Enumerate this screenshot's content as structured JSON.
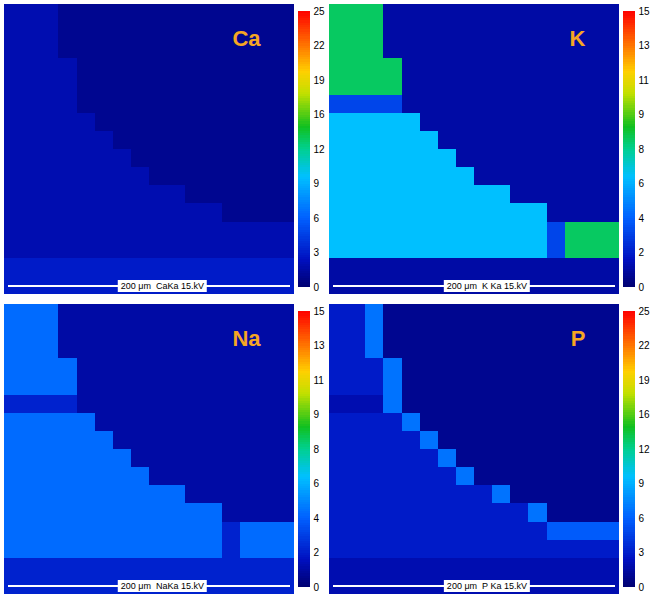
{
  "chart_data": [
    {
      "type": "heatmap",
      "title": "Ca",
      "scale_bar": "200 μm",
      "info": "CaKa 15.kV",
      "tick_labels": false,
      "cells": [
        [
          2,
          2,
          2,
          1,
          1,
          1,
          1,
          1,
          1,
          1,
          1,
          1,
          1,
          1,
          1,
          1
        ],
        [
          2,
          2,
          2,
          1,
          1,
          1,
          1,
          1,
          1,
          1,
          1,
          1,
          1,
          1,
          1,
          1
        ],
        [
          2,
          2,
          2,
          1,
          1,
          1,
          1,
          1,
          1,
          1,
          1,
          1,
          1,
          1,
          1,
          1
        ],
        [
          2,
          2,
          2,
          2,
          1,
          1,
          1,
          1,
          1,
          1,
          1,
          1,
          1,
          1,
          1,
          1
        ],
        [
          2,
          2,
          2,
          2,
          1,
          1,
          1,
          1,
          1,
          1,
          1,
          1,
          1,
          1,
          1,
          1
        ],
        [
          2,
          2,
          2,
          2,
          1,
          1,
          1,
          1,
          1,
          1,
          1,
          1,
          1,
          1,
          1,
          1
        ],
        [
          2,
          2,
          2,
          2,
          2,
          1,
          1,
          1,
          1,
          1,
          1,
          1,
          1,
          1,
          1,
          1
        ],
        [
          2,
          2,
          2,
          2,
          2,
          2,
          1,
          1,
          1,
          1,
          1,
          1,
          1,
          1,
          1,
          1
        ],
        [
          2,
          2,
          2,
          2,
          2,
          2,
          2,
          1,
          1,
          1,
          1,
          1,
          1,
          1,
          1,
          1
        ],
        [
          2,
          2,
          2,
          2,
          2,
          2,
          2,
          2,
          1,
          1,
          1,
          1,
          1,
          1,
          1,
          1
        ],
        [
          2,
          2,
          2,
          2,
          2,
          2,
          2,
          2,
          2,
          2,
          1,
          1,
          1,
          1,
          1,
          1
        ],
        [
          2,
          2,
          2,
          2,
          2,
          2,
          2,
          2,
          2,
          2,
          2,
          2,
          1,
          1,
          1,
          1
        ],
        [
          2,
          2,
          2,
          2,
          2,
          2,
          2,
          2,
          2,
          2,
          2,
          2,
          2,
          2,
          2,
          2
        ],
        [
          2,
          2,
          2,
          2,
          2,
          2,
          2,
          2,
          2,
          2,
          2,
          2,
          2,
          2,
          2,
          2
        ],
        [
          3,
          3,
          3,
          3,
          3,
          3,
          3,
          3,
          3,
          3,
          3,
          3,
          3,
          3,
          3,
          3
        ],
        [
          3,
          3,
          3,
          3,
          3,
          3,
          3,
          3,
          3,
          3,
          3,
          3,
          3,
          3,
          3,
          3
        ]
      ],
      "colorbar": {
        "range": [
          0,
          25
        ],
        "ticks": [
          0,
          {
            "value": 3.125,
            "label": "3"
          },
          {
            "value": 6.25,
            "label": "6"
          },
          {
            "value": 9.375,
            "label": "9"
          },
          {
            "value": 12.5,
            "label": "12"
          },
          {
            "value": 15.625,
            "label": "16"
          },
          {
            "value": 18.75,
            "label": "19"
          },
          {
            "value": 21.875,
            "label": "22"
          },
          25
        ]
      }
    },
    {
      "type": "heatmap",
      "title": "K",
      "scale_bar": "200 μm",
      "info": "K Ka 15.kV",
      "tick_labels": false,
      "cells": [
        [
          8,
          8,
          8,
          1,
          1,
          1,
          1,
          1,
          1,
          1,
          1,
          1,
          1,
          1,
          1,
          1
        ],
        [
          8,
          8,
          8,
          1,
          1,
          1,
          1,
          1,
          1,
          1,
          1,
          1,
          1,
          1,
          1,
          1
        ],
        [
          8,
          8,
          8,
          1,
          1,
          1,
          1,
          1,
          1,
          1,
          1,
          1,
          1,
          1,
          1,
          1
        ],
        [
          8,
          8,
          8,
          8,
          1,
          1,
          1,
          1,
          1,
          1,
          1,
          1,
          1,
          1,
          1,
          1
        ],
        [
          8,
          8,
          8,
          8,
          1,
          1,
          1,
          1,
          1,
          1,
          1,
          1,
          1,
          1,
          1,
          1
        ],
        [
          3,
          3,
          3,
          3,
          1,
          1,
          1,
          1,
          1,
          1,
          1,
          1,
          1,
          1,
          1,
          1
        ],
        [
          6,
          6,
          6,
          6,
          6,
          1,
          1,
          1,
          1,
          1,
          1,
          1,
          1,
          1,
          1,
          1
        ],
        [
          6,
          6,
          6,
          6,
          6,
          6,
          1,
          1,
          1,
          1,
          1,
          1,
          1,
          1,
          1,
          1
        ],
        [
          6,
          6,
          6,
          6,
          6,
          6,
          6,
          1,
          1,
          1,
          1,
          1,
          1,
          1,
          1,
          1
        ],
        [
          6,
          6,
          6,
          6,
          6,
          6,
          6,
          6,
          1,
          1,
          1,
          1,
          1,
          1,
          1,
          1
        ],
        [
          6,
          6,
          6,
          6,
          6,
          6,
          6,
          6,
          6,
          6,
          1,
          1,
          1,
          1,
          1,
          1
        ],
        [
          6,
          6,
          6,
          6,
          6,
          6,
          6,
          6,
          6,
          6,
          6,
          6,
          1,
          1,
          1,
          1
        ],
        [
          6,
          6,
          6,
          6,
          6,
          6,
          6,
          6,
          6,
          6,
          6,
          6,
          3,
          8,
          8,
          8
        ],
        [
          6,
          6,
          6,
          6,
          6,
          6,
          6,
          6,
          6,
          6,
          6,
          6,
          3,
          8,
          8,
          8
        ],
        [
          1,
          1,
          1,
          1,
          1,
          1,
          1,
          1,
          1,
          1,
          1,
          1,
          1,
          1,
          1,
          1
        ],
        [
          1,
          1,
          1,
          1,
          1,
          1,
          1,
          1,
          1,
          1,
          1,
          1,
          1,
          1,
          1,
          1
        ]
      ],
      "colorbar": {
        "range": [
          0,
          15
        ],
        "ticks": [
          0,
          {
            "value": 1.875,
            "label": "2"
          },
          {
            "value": 3.75,
            "label": "4"
          },
          {
            "value": 5.625,
            "label": "6"
          },
          {
            "value": 7.5,
            "label": "8"
          },
          {
            "value": 9.375,
            "label": "9"
          },
          {
            "value": 11.25,
            "label": "11"
          },
          {
            "value": 13.125,
            "label": "13"
          },
          15
        ]
      }
    },
    {
      "type": "heatmap",
      "title": "Na",
      "scale_bar": "200 μm",
      "info": "NaKa 15.kV",
      "tick_labels": false,
      "cells": [
        [
          4,
          4,
          4,
          1,
          1,
          1,
          1,
          1,
          1,
          1,
          1,
          1,
          1,
          1,
          1,
          1
        ],
        [
          4,
          4,
          4,
          1,
          1,
          1,
          1,
          1,
          1,
          1,
          1,
          1,
          1,
          1,
          1,
          1
        ],
        [
          4,
          4,
          4,
          1,
          1,
          1,
          1,
          1,
          1,
          1,
          1,
          1,
          1,
          1,
          1,
          1
        ],
        [
          4,
          4,
          4,
          4,
          1,
          1,
          1,
          1,
          1,
          1,
          1,
          1,
          1,
          1,
          1,
          1
        ],
        [
          4,
          4,
          4,
          4,
          1,
          1,
          1,
          1,
          1,
          1,
          1,
          1,
          1,
          1,
          1,
          1
        ],
        [
          2,
          2,
          2,
          2,
          1,
          1,
          1,
          1,
          1,
          1,
          1,
          1,
          1,
          1,
          1,
          1
        ],
        [
          4,
          4,
          4,
          4,
          4,
          1,
          1,
          1,
          1,
          1,
          1,
          1,
          1,
          1,
          1,
          1
        ],
        [
          4,
          4,
          4,
          4,
          4,
          4,
          1,
          1,
          1,
          1,
          1,
          1,
          1,
          1,
          1,
          1
        ],
        [
          4,
          4,
          4,
          4,
          4,
          4,
          4,
          1,
          1,
          1,
          1,
          1,
          1,
          1,
          1,
          1
        ],
        [
          4,
          4,
          4,
          4,
          4,
          4,
          4,
          4,
          1,
          1,
          1,
          1,
          1,
          1,
          1,
          1
        ],
        [
          4,
          4,
          4,
          4,
          4,
          4,
          4,
          4,
          4,
          4,
          1,
          1,
          1,
          1,
          1,
          1
        ],
        [
          4,
          4,
          4,
          4,
          4,
          4,
          4,
          4,
          4,
          4,
          4,
          4,
          1,
          1,
          1,
          1
        ],
        [
          4,
          4,
          4,
          4,
          4,
          4,
          4,
          4,
          4,
          4,
          4,
          4,
          2,
          4,
          4,
          4
        ],
        [
          4,
          4,
          4,
          4,
          4,
          4,
          4,
          4,
          4,
          4,
          4,
          4,
          2,
          4,
          4,
          4
        ],
        [
          2,
          2,
          2,
          2,
          2,
          2,
          2,
          2,
          2,
          2,
          2,
          2,
          2,
          2,
          2,
          2
        ],
        [
          2,
          2,
          2,
          2,
          2,
          2,
          2,
          2,
          2,
          2,
          2,
          2,
          2,
          2,
          2,
          2
        ]
      ],
      "colorbar": {
        "range": [
          0,
          15
        ],
        "ticks": [
          0,
          {
            "value": 1.875,
            "label": "2"
          },
          {
            "value": 3.75,
            "label": "4"
          },
          {
            "value": 5.625,
            "label": "6"
          },
          {
            "value": 7.5,
            "label": "8"
          },
          {
            "value": 9.375,
            "label": "9"
          },
          {
            "value": 11.25,
            "label": "11"
          },
          {
            "value": 13.125,
            "label": "13"
          },
          15
        ]
      }
    },
    {
      "type": "heatmap",
      "title": "P",
      "scale_bar": "200 μm",
      "info": "P Ka 15.kV",
      "tick_labels": false,
      "cells": [
        [
          3,
          3,
          7,
          1,
          1,
          1,
          1,
          1,
          1,
          1,
          1,
          1,
          1,
          1,
          1,
          1
        ],
        [
          3,
          3,
          7,
          1,
          1,
          1,
          1,
          1,
          1,
          1,
          1,
          1,
          1,
          1,
          1,
          1
        ],
        [
          3,
          3,
          7,
          1,
          1,
          1,
          1,
          1,
          1,
          1,
          1,
          1,
          1,
          1,
          1,
          1
        ],
        [
          3,
          3,
          3,
          7,
          1,
          1,
          1,
          1,
          1,
          1,
          1,
          1,
          1,
          1,
          1,
          1
        ],
        [
          3,
          3,
          3,
          7,
          1,
          1,
          1,
          1,
          1,
          1,
          1,
          1,
          1,
          1,
          1,
          1
        ],
        [
          2,
          2,
          2,
          7,
          1,
          1,
          1,
          1,
          1,
          1,
          1,
          1,
          1,
          1,
          1,
          1
        ],
        [
          3,
          3,
          3,
          3,
          7,
          1,
          1,
          1,
          1,
          1,
          1,
          1,
          1,
          1,
          1,
          1
        ],
        [
          3,
          3,
          3,
          3,
          3,
          7,
          1,
          1,
          1,
          1,
          1,
          1,
          1,
          1,
          1,
          1
        ],
        [
          3,
          3,
          3,
          3,
          3,
          3,
          7,
          1,
          1,
          1,
          1,
          1,
          1,
          1,
          1,
          1
        ],
        [
          3,
          3,
          3,
          3,
          3,
          3,
          3,
          7,
          1,
          1,
          1,
          1,
          1,
          1,
          1,
          1
        ],
        [
          3,
          3,
          3,
          3,
          3,
          3,
          3,
          3,
          3,
          7,
          1,
          1,
          1,
          1,
          1,
          1
        ],
        [
          3,
          3,
          3,
          3,
          3,
          3,
          3,
          3,
          3,
          3,
          3,
          7,
          1,
          1,
          1,
          1
        ],
        [
          3,
          3,
          3,
          3,
          3,
          3,
          3,
          3,
          3,
          3,
          3,
          3,
          6,
          6,
          6,
          6
        ],
        [
          3,
          3,
          3,
          3,
          3,
          3,
          3,
          3,
          3,
          3,
          3,
          3,
          3,
          3,
          3,
          3
        ],
        [
          2,
          2,
          2,
          2,
          2,
          2,
          2,
          2,
          2,
          2,
          2,
          2,
          2,
          2,
          2,
          2
        ],
        [
          2,
          2,
          2,
          2,
          2,
          2,
          2,
          2,
          2,
          2,
          2,
          2,
          2,
          2,
          2,
          2
        ]
      ],
      "colorbar": {
        "range": [
          0,
          25
        ],
        "ticks": [
          0,
          {
            "value": 3.125,
            "label": "3"
          },
          {
            "value": 6.25,
            "label": "6"
          },
          {
            "value": 9.375,
            "label": "9"
          },
          {
            "value": 12.5,
            "label": "12"
          },
          {
            "value": 15.625,
            "label": "16"
          },
          {
            "value": 18.75,
            "label": "19"
          },
          {
            "value": 21.875,
            "label": "22"
          },
          25
        ]
      }
    }
  ]
}
